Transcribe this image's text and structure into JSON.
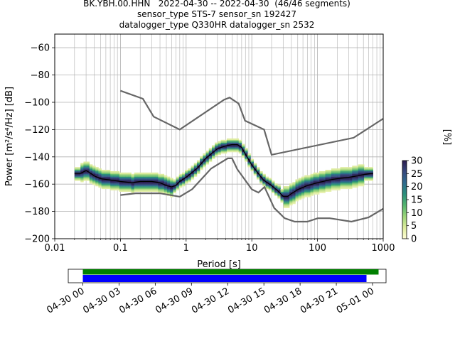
{
  "title": {
    "line1": "BK.YBH.00.HHN   2022-04-30 -- 2022-04-30  (46/46 segments)",
    "line2": "sensor_type STS-7 sensor_sn 192427",
    "line3": "datalogger_type Q330HR datalogger_sn 2532"
  },
  "chart_data": [
    {
      "type": "heatmap",
      "xlabel": "Period [s]",
      "ylabel": "Power [m²/s⁴/Hz] [dB]",
      "xscale": "log",
      "xlim": [
        0.01,
        1000
      ],
      "ylim": [
        -200,
        -50
      ],
      "x_ticks": [
        "0.01",
        "0.1",
        "1",
        "10",
        "100",
        "1000"
      ],
      "y_ticks": [
        -60,
        -80,
        -100,
        -120,
        -140,
        -160,
        -180,
        -200
      ],
      "grid": true,
      "colorbar": {
        "label": "[%]",
        "min": 0,
        "max": 30,
        "ticks": [
          0,
          5,
          10,
          15,
          20,
          25,
          30
        ],
        "colormap": [
          "#fffdd5",
          "#dceb9c",
          "#9bd479",
          "#53b46e",
          "#2a8e7a",
          "#2e6a8e",
          "#36497e",
          "#2b1b4e"
        ]
      },
      "mean_curve": {
        "color": "#000000",
        "x": [
          0.02,
          0.025,
          0.03,
          0.035,
          0.04,
          0.05,
          0.07,
          0.1,
          0.15,
          0.2,
          0.3,
          0.4,
          0.5,
          0.6,
          0.7,
          0.8,
          1,
          1.5,
          2,
          3,
          4,
          5,
          6,
          7,
          8,
          10,
          15,
          20,
          25,
          30,
          35,
          40,
          50,
          70,
          100,
          150,
          200,
          300,
          400,
          500,
          700
        ],
        "y": [
          -152,
          -152,
          -150,
          -152,
          -154,
          -156,
          -157,
          -158,
          -159,
          -158,
          -158,
          -159,
          -161,
          -162,
          -161,
          -158,
          -155,
          -148,
          -141,
          -134,
          -132,
          -131,
          -131,
          -133,
          -138,
          -146,
          -157,
          -161,
          -165,
          -169,
          -169,
          -167,
          -164,
          -161,
          -159,
          -157,
          -156,
          -155,
          -154,
          -153,
          -152
        ]
      },
      "noise_models": {
        "color": "#666666",
        "nhnm": {
          "x": [
            0.1,
            0.22,
            0.32,
            0.8,
            3.8,
            4.6,
            6.3,
            7.9,
            15.4,
            20,
            354.8,
            1000
          ],
          "y": [
            -91.5,
            -97.4,
            -110.5,
            -120,
            -98,
            -96.5,
            -101,
            -113.5,
            -120,
            -138.5,
            -126,
            -112
          ]
        },
        "nlnm": {
          "x": [
            0.1,
            0.17,
            0.4,
            0.8,
            1.24,
            2.4,
            4.3,
            5,
            6,
            10,
            12.6,
            15.6,
            21.9,
            31.6,
            45,
            70,
            101,
            154,
            328,
            600,
            1000
          ],
          "y": [
            -168,
            -166.7,
            -166.7,
            -169.2,
            -163.7,
            -148.6,
            -141.1,
            -141.1,
            -149,
            -163.8,
            -166.2,
            -162.1,
            -177.5,
            -185,
            -187.5,
            -187.5,
            -185,
            -185,
            -187.5,
            -184.4,
            -178
          ]
        }
      }
    },
    {
      "type": "bar",
      "orientation": "horizontal",
      "x_ticks": [
        "04-30 00",
        "04-30 03",
        "04-30 06",
        "04-30 09",
        "04-30 12",
        "04-30 15",
        "04-30 18",
        "04-30 21",
        "05-01 00"
      ],
      "series": [
        {
          "color": "#008000",
          "x": [
            "04-30 00:00",
            "05-01 00:30"
          ]
        },
        {
          "color": "#0000ff",
          "x": [
            "04-30 00:00",
            "04-30 23:30"
          ]
        }
      ]
    }
  ]
}
